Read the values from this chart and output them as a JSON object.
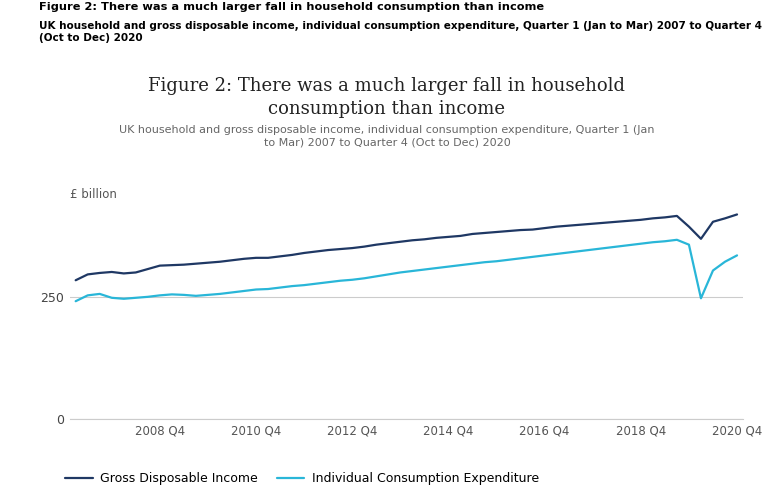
{
  "header_bold": "Figure 2: There was a much larger fall in household consumption than income",
  "header_sub_bold": "UK household and gross disposable income, individual consumption expenditure, Quarter 1 (Jan to Mar) 2007 to Quarter 4\n(Oct to Dec) 2020",
  "chart_title_line1": "Figure 2: There was a much larger fall in household",
  "chart_title_line2": "consumption than income",
  "chart_subtitle": "UK household and gross disposable income, individual consumption expenditure, Quarter 1 (Jan\nto Mar) 2007 to Quarter 4 (Oct to Dec) 2020",
  "ylabel": "£ billion",
  "yticks": [
    0,
    250
  ],
  "ylim": [
    0,
    430
  ],
  "background_color": "#ffffff",
  "gdi_color": "#1f3864",
  "ice_color": "#29b6d8",
  "line_width": 1.6,
  "legend_labels": [
    "Gross Disposable Income",
    "Individual Consumption Expenditure"
  ],
  "xtick_labels": [
    "2008 Q4",
    "2010 Q4",
    "2012 Q4",
    "2014 Q4",
    "2016 Q4",
    "2018 Q4",
    "2020 Q4"
  ],
  "xtick_positions": [
    7,
    15,
    23,
    31,
    39,
    47,
    55
  ],
  "gdi": [
    285,
    297,
    300,
    302,
    299,
    301,
    308,
    315,
    316,
    317,
    319,
    321,
    323,
    326,
    329,
    331,
    331,
    334,
    337,
    341,
    344,
    347,
    349,
    351,
    354,
    358,
    361,
    364,
    367,
    369,
    372,
    374,
    376,
    380,
    382,
    384,
    386,
    388,
    389,
    392,
    395,
    397,
    399,
    401,
    403,
    405,
    407,
    409,
    412,
    414,
    417,
    395,
    370,
    405,
    412,
    420
  ],
  "ice": [
    242,
    254,
    257,
    249,
    247,
    249,
    251,
    254,
    256,
    255,
    253,
    255,
    257,
    260,
    263,
    266,
    267,
    270,
    273,
    275,
    278,
    281,
    284,
    286,
    289,
    293,
    297,
    301,
    304,
    307,
    310,
    313,
    316,
    319,
    322,
    324,
    327,
    330,
    333,
    336,
    339,
    342,
    345,
    348,
    351,
    354,
    357,
    360,
    363,
    365,
    368,
    358,
    248,
    305,
    323,
    336
  ]
}
